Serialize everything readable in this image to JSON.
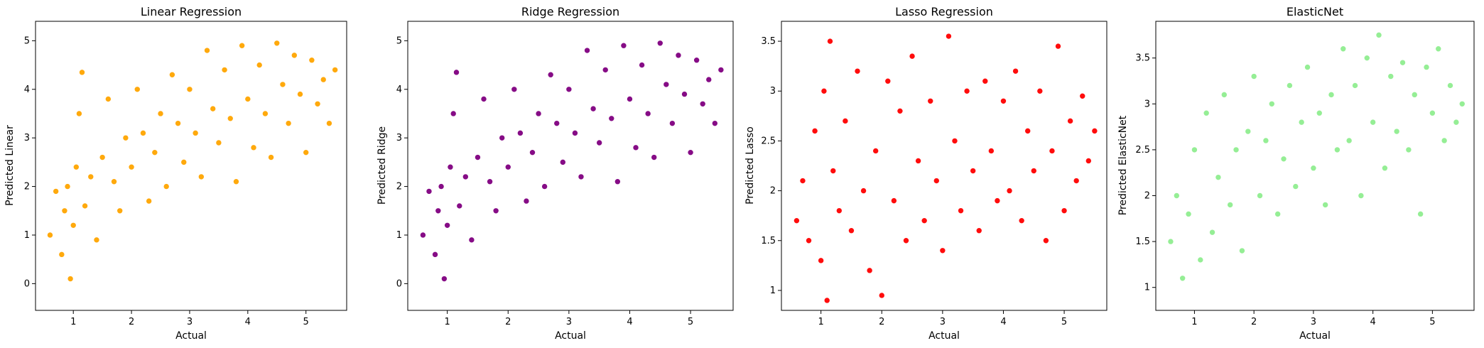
{
  "chart_data": [
    {
      "type": "scatter",
      "title": "Linear Regression",
      "xlabel": "Actual",
      "ylabel": "Predicted Linear",
      "xlim": [
        0.35,
        5.7
      ],
      "ylim": [
        -0.55,
        5.4
      ],
      "xticks": [
        1,
        2,
        3,
        4,
        5
      ],
      "yticks": [
        0,
        1,
        2,
        3,
        4,
        5
      ],
      "color": "#FFA500",
      "grid": false,
      "series": [
        {
          "points": [
            [
              0.6,
              1.0
            ],
            [
              0.7,
              1.9
            ],
            [
              0.8,
              0.6
            ],
            [
              0.85,
              1.5
            ],
            [
              0.9,
              2.0
            ],
            [
              0.95,
              0.1
            ],
            [
              1.0,
              1.2
            ],
            [
              1.05,
              2.4
            ],
            [
              1.1,
              3.5
            ],
            [
              1.15,
              4.35
            ],
            [
              1.2,
              1.6
            ],
            [
              1.3,
              2.2
            ],
            [
              1.4,
              0.9
            ],
            [
              1.5,
              2.6
            ],
            [
              1.6,
              3.8
            ],
            [
              1.7,
              2.1
            ],
            [
              1.8,
              1.5
            ],
            [
              1.9,
              3.0
            ],
            [
              2.0,
              2.4
            ],
            [
              2.1,
              4.0
            ],
            [
              2.2,
              3.1
            ],
            [
              2.3,
              1.7
            ],
            [
              2.4,
              2.7
            ],
            [
              2.5,
              3.5
            ],
            [
              2.6,
              2.0
            ],
            [
              2.7,
              4.3
            ],
            [
              2.8,
              3.3
            ],
            [
              2.9,
              2.5
            ],
            [
              3.0,
              4.0
            ],
            [
              3.1,
              3.1
            ],
            [
              3.2,
              2.2
            ],
            [
              3.3,
              4.8
            ],
            [
              3.4,
              3.6
            ],
            [
              3.5,
              2.9
            ],
            [
              3.6,
              4.4
            ],
            [
              3.7,
              3.4
            ],
            [
              3.8,
              2.1
            ],
            [
              3.9,
              4.9
            ],
            [
              4.0,
              3.8
            ],
            [
              4.1,
              2.8
            ],
            [
              4.2,
              4.5
            ],
            [
              4.3,
              3.5
            ],
            [
              4.4,
              2.6
            ],
            [
              4.5,
              4.95
            ],
            [
              4.6,
              4.1
            ],
            [
              4.7,
              3.3
            ],
            [
              4.8,
              4.7
            ],
            [
              4.9,
              3.9
            ],
            [
              5.0,
              2.7
            ],
            [
              5.1,
              4.6
            ],
            [
              5.2,
              3.7
            ],
            [
              5.3,
              4.2
            ],
            [
              5.4,
              3.3
            ],
            [
              5.5,
              4.4
            ]
          ]
        }
      ]
    },
    {
      "type": "scatter",
      "title": "Ridge Regression",
      "xlabel": "Actual",
      "ylabel": "Predicted Ridge",
      "xlim": [
        0.35,
        5.7
      ],
      "ylim": [
        -0.55,
        5.4
      ],
      "xticks": [
        1,
        2,
        3,
        4,
        5
      ],
      "yticks": [
        0,
        1,
        2,
        3,
        4,
        5
      ],
      "color": "#800080",
      "grid": false,
      "series": [
        {
          "points": [
            [
              0.6,
              1.0
            ],
            [
              0.7,
              1.9
            ],
            [
              0.8,
              0.6
            ],
            [
              0.85,
              1.5
            ],
            [
              0.9,
              2.0
            ],
            [
              0.95,
              0.1
            ],
            [
              1.0,
              1.2
            ],
            [
              1.05,
              2.4
            ],
            [
              1.1,
              3.5
            ],
            [
              1.15,
              4.35
            ],
            [
              1.2,
              1.6
            ],
            [
              1.3,
              2.2
            ],
            [
              1.4,
              0.9
            ],
            [
              1.5,
              2.6
            ],
            [
              1.6,
              3.8
            ],
            [
              1.7,
              2.1
            ],
            [
              1.8,
              1.5
            ],
            [
              1.9,
              3.0
            ],
            [
              2.0,
              2.4
            ],
            [
              2.1,
              4.0
            ],
            [
              2.2,
              3.1
            ],
            [
              2.3,
              1.7
            ],
            [
              2.4,
              2.7
            ],
            [
              2.5,
              3.5
            ],
            [
              2.6,
              2.0
            ],
            [
              2.7,
              4.3
            ],
            [
              2.8,
              3.3
            ],
            [
              2.9,
              2.5
            ],
            [
              3.0,
              4.0
            ],
            [
              3.1,
              3.1
            ],
            [
              3.2,
              2.2
            ],
            [
              3.3,
              4.8
            ],
            [
              3.4,
              3.6
            ],
            [
              3.5,
              2.9
            ],
            [
              3.6,
              4.4
            ],
            [
              3.7,
              3.4
            ],
            [
              3.8,
              2.1
            ],
            [
              3.9,
              4.9
            ],
            [
              4.0,
              3.8
            ],
            [
              4.1,
              2.8
            ],
            [
              4.2,
              4.5
            ],
            [
              4.3,
              3.5
            ],
            [
              4.4,
              2.6
            ],
            [
              4.5,
              4.95
            ],
            [
              4.6,
              4.1
            ],
            [
              4.7,
              3.3
            ],
            [
              4.8,
              4.7
            ],
            [
              4.9,
              3.9
            ],
            [
              5.0,
              2.7
            ],
            [
              5.1,
              4.6
            ],
            [
              5.2,
              3.7
            ],
            [
              5.3,
              4.2
            ],
            [
              5.4,
              3.3
            ],
            [
              5.5,
              4.4
            ]
          ]
        }
      ]
    },
    {
      "type": "scatter",
      "title": "Lasso Regression",
      "xlabel": "Actual",
      "ylabel": "Predicted Lasso",
      "xlim": [
        0.35,
        5.7
      ],
      "ylim": [
        0.8,
        3.7
      ],
      "xticks": [
        1,
        2,
        3,
        4,
        5
      ],
      "yticks": [
        1.0,
        1.5,
        2.0,
        2.5,
        3.0,
        3.5
      ],
      "color": "#FF0000",
      "grid": false,
      "series": [
        {
          "points": [
            [
              0.6,
              1.7
            ],
            [
              0.7,
              2.1
            ],
            [
              0.8,
              1.5
            ],
            [
              0.9,
              2.6
            ],
            [
              1.0,
              1.3
            ],
            [
              1.05,
              3.0
            ],
            [
              1.1,
              0.9
            ],
            [
              1.15,
              3.5
            ],
            [
              1.2,
              2.2
            ],
            [
              1.3,
              1.8
            ],
            [
              1.4,
              2.7
            ],
            [
              1.5,
              1.6
            ],
            [
              1.6,
              3.2
            ],
            [
              1.7,
              2.0
            ],
            [
              1.8,
              1.2
            ],
            [
              1.9,
              2.4
            ],
            [
              2.0,
              0.95
            ],
            [
              2.1,
              3.1
            ],
            [
              2.2,
              1.9
            ],
            [
              2.3,
              2.8
            ],
            [
              2.4,
              1.5
            ],
            [
              2.5,
              3.35
            ],
            [
              2.6,
              2.3
            ],
            [
              2.7,
              1.7
            ],
            [
              2.8,
              2.9
            ],
            [
              2.9,
              2.1
            ],
            [
              3.0,
              1.4
            ],
            [
              3.1,
              3.55
            ],
            [
              3.2,
              2.5
            ],
            [
              3.3,
              1.8
            ],
            [
              3.4,
              3.0
            ],
            [
              3.5,
              2.2
            ],
            [
              3.6,
              1.6
            ],
            [
              3.7,
              3.1
            ],
            [
              3.8,
              2.4
            ],
            [
              3.9,
              1.9
            ],
            [
              4.0,
              2.9
            ],
            [
              4.1,
              2.0
            ],
            [
              4.2,
              3.2
            ],
            [
              4.3,
              1.7
            ],
            [
              4.4,
              2.6
            ],
            [
              4.5,
              2.2
            ],
            [
              4.6,
              3.0
            ],
            [
              4.7,
              1.5
            ],
            [
              4.8,
              2.4
            ],
            [
              4.9,
              3.45
            ],
            [
              5.0,
              1.8
            ],
            [
              5.1,
              2.7
            ],
            [
              5.2,
              2.1
            ],
            [
              5.3,
              2.95
            ],
            [
              5.4,
              2.3
            ],
            [
              5.5,
              2.6
            ]
          ]
        }
      ]
    },
    {
      "type": "scatter",
      "title": "ElasticNet",
      "xlabel": "Actual",
      "ylabel": "Predicted ElasticNet",
      "xlim": [
        0.35,
        5.7
      ],
      "ylim": [
        0.75,
        3.9
      ],
      "xticks": [
        1,
        2,
        3,
        4,
        5
      ],
      "yticks": [
        1.0,
        1.5,
        2.0,
        2.5,
        3.0,
        3.5
      ],
      "color": "#90EE90",
      "grid": false,
      "series": [
        {
          "points": [
            [
              0.6,
              1.5
            ],
            [
              0.7,
              2.0
            ],
            [
              0.8,
              1.1
            ],
            [
              0.9,
              1.8
            ],
            [
              1.0,
              2.5
            ],
            [
              1.1,
              1.3
            ],
            [
              1.2,
              2.9
            ],
            [
              1.3,
              1.6
            ],
            [
              1.4,
              2.2
            ],
            [
              1.5,
              3.1
            ],
            [
              1.6,
              1.9
            ],
            [
              1.7,
              2.5
            ],
            [
              1.8,
              1.4
            ],
            [
              1.9,
              2.7
            ],
            [
              2.0,
              3.3
            ],
            [
              2.1,
              2.0
            ],
            [
              2.2,
              2.6
            ],
            [
              2.3,
              3.0
            ],
            [
              2.4,
              1.8
            ],
            [
              2.5,
              2.4
            ],
            [
              2.6,
              3.2
            ],
            [
              2.7,
              2.1
            ],
            [
              2.8,
              2.8
            ],
            [
              2.9,
              3.4
            ],
            [
              3.0,
              2.3
            ],
            [
              3.1,
              2.9
            ],
            [
              3.2,
              1.9
            ],
            [
              3.3,
              3.1
            ],
            [
              3.4,
              2.5
            ],
            [
              3.5,
              3.6
            ],
            [
              3.6,
              2.6
            ],
            [
              3.7,
              3.2
            ],
            [
              3.8,
              2.0
            ],
            [
              3.9,
              3.5
            ],
            [
              4.0,
              2.8
            ],
            [
              4.1,
              3.75
            ],
            [
              4.2,
              2.3
            ],
            [
              4.3,
              3.3
            ],
            [
              4.4,
              2.7
            ],
            [
              4.5,
              3.45
            ],
            [
              4.6,
              2.5
            ],
            [
              4.7,
              3.1
            ],
            [
              4.8,
              1.8
            ],
            [
              4.9,
              3.4
            ],
            [
              5.0,
              2.9
            ],
            [
              5.1,
              3.6
            ],
            [
              5.2,
              2.6
            ],
            [
              5.3,
              3.2
            ],
            [
              5.4,
              2.8
            ],
            [
              5.5,
              3.0
            ]
          ]
        }
      ]
    }
  ]
}
